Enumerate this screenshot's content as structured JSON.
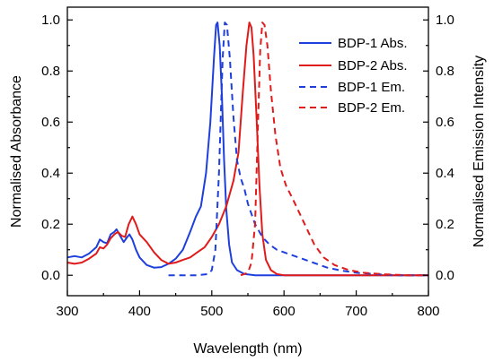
{
  "chart_data": {
    "type": "line",
    "title": "",
    "xlabel": "Wavelength (nm)",
    "ylabel_left": "Normalised Absorbance",
    "ylabel_right": "Normalised Emission Intensity",
    "xlim": [
      300,
      800
    ],
    "ylim_left": [
      -0.08,
      1.05
    ],
    "ylim_right": [
      -0.08,
      1.05
    ],
    "x_ticks": [
      300,
      400,
      500,
      600,
      700,
      800
    ],
    "y_ticks": [
      0.0,
      0.2,
      0.4,
      0.6,
      0.8,
      1.0
    ],
    "x_tick_labels": [
      "300",
      "400",
      "500",
      "600",
      "700",
      "800"
    ],
    "y_tick_labels_left": [
      "0.0",
      "0.2",
      "0.4",
      "0.6",
      "0.8",
      "1.0"
    ],
    "y_tick_labels_right": [
      "0.0",
      "0.2",
      "0.4",
      "0.6",
      "0.8",
      "1.0"
    ],
    "grid": false,
    "legend_position": "top-right",
    "series": [
      {
        "name": "BDP-1 Abs.",
        "color": "#1f3fdd",
        "dash": "solid",
        "axis": "left",
        "points": [
          [
            300,
            0.07
          ],
          [
            310,
            0.075
          ],
          [
            320,
            0.07
          ],
          [
            330,
            0.085
          ],
          [
            340,
            0.11
          ],
          [
            345,
            0.14
          ],
          [
            350,
            0.13
          ],
          [
            355,
            0.125
          ],
          [
            360,
            0.16
          ],
          [
            365,
            0.17
          ],
          [
            368,
            0.18
          ],
          [
            372,
            0.16
          ],
          [
            378,
            0.13
          ],
          [
            383,
            0.15
          ],
          [
            386,
            0.16
          ],
          [
            390,
            0.14
          ],
          [
            395,
            0.1
          ],
          [
            400,
            0.07
          ],
          [
            410,
            0.04
          ],
          [
            420,
            0.03
          ],
          [
            430,
            0.032
          ],
          [
            440,
            0.045
          ],
          [
            450,
            0.065
          ],
          [
            460,
            0.1
          ],
          [
            470,
            0.17
          ],
          [
            478,
            0.23
          ],
          [
            485,
            0.27
          ],
          [
            492,
            0.4
          ],
          [
            498,
            0.6
          ],
          [
            503,
            0.85
          ],
          [
            506,
            0.98
          ],
          [
            508,
            0.99
          ],
          [
            511,
            0.9
          ],
          [
            514,
            0.7
          ],
          [
            517,
            0.45
          ],
          [
            520,
            0.26
          ],
          [
            524,
            0.12
          ],
          [
            528,
            0.05
          ],
          [
            535,
            0.02
          ],
          [
            545,
            0.005
          ],
          [
            560,
            0.0
          ],
          [
            600,
            0.0
          ],
          [
            700,
            0.0
          ],
          [
            800,
            0.0
          ]
        ]
      },
      {
        "name": "BDP-2 Abs.",
        "color": "#e01b1b",
        "dash": "solid",
        "axis": "left",
        "points": [
          [
            300,
            0.05
          ],
          [
            310,
            0.045
          ],
          [
            320,
            0.05
          ],
          [
            330,
            0.065
          ],
          [
            340,
            0.085
          ],
          [
            345,
            0.11
          ],
          [
            350,
            0.105
          ],
          [
            355,
            0.12
          ],
          [
            360,
            0.145
          ],
          [
            365,
            0.16
          ],
          [
            370,
            0.17
          ],
          [
            375,
            0.155
          ],
          [
            380,
            0.15
          ],
          [
            385,
            0.2
          ],
          [
            390,
            0.23
          ],
          [
            395,
            0.2
          ],
          [
            400,
            0.16
          ],
          [
            410,
            0.13
          ],
          [
            420,
            0.09
          ],
          [
            430,
            0.06
          ],
          [
            440,
            0.045
          ],
          [
            450,
            0.05
          ],
          [
            460,
            0.06
          ],
          [
            470,
            0.07
          ],
          [
            480,
            0.09
          ],
          [
            490,
            0.11
          ],
          [
            500,
            0.15
          ],
          [
            510,
            0.2
          ],
          [
            520,
            0.27
          ],
          [
            530,
            0.37
          ],
          [
            537,
            0.48
          ],
          [
            543,
            0.72
          ],
          [
            548,
            0.9
          ],
          [
            552,
            0.99
          ],
          [
            555,
            0.97
          ],
          [
            558,
            0.86
          ],
          [
            562,
            0.62
          ],
          [
            566,
            0.35
          ],
          [
            570,
            0.16
          ],
          [
            575,
            0.06
          ],
          [
            582,
            0.02
          ],
          [
            590,
            0.005
          ],
          [
            600,
            0.0
          ],
          [
            700,
            0.0
          ],
          [
            800,
            0.0
          ]
        ]
      },
      {
        "name": "BDP-1 Em.",
        "color": "#1f3fdd",
        "dash": "dashed",
        "axis": "right",
        "points": [
          [
            440,
            0.0
          ],
          [
            480,
            0.0
          ],
          [
            495,
            0.005
          ],
          [
            500,
            0.02
          ],
          [
            505,
            0.1
          ],
          [
            510,
            0.4
          ],
          [
            515,
            0.85
          ],
          [
            518,
            0.99
          ],
          [
            521,
            0.98
          ],
          [
            525,
            0.85
          ],
          [
            530,
            0.62
          ],
          [
            535,
            0.45
          ],
          [
            540,
            0.38
          ],
          [
            545,
            0.34
          ],
          [
            550,
            0.28
          ],
          [
            560,
            0.2
          ],
          [
            570,
            0.15
          ],
          [
            580,
            0.12
          ],
          [
            590,
            0.1
          ],
          [
            600,
            0.09
          ],
          [
            620,
            0.07
          ],
          [
            640,
            0.05
          ],
          [
            660,
            0.03
          ],
          [
            680,
            0.018
          ],
          [
            700,
            0.01
          ],
          [
            730,
            0.004
          ],
          [
            760,
            0.0
          ],
          [
            800,
            0.0
          ]
        ]
      },
      {
        "name": "BDP-2 Em.",
        "color": "#e01b1b",
        "dash": "dashed",
        "axis": "right",
        "points": [
          [
            540,
            0.0
          ],
          [
            550,
            0.01
          ],
          [
            555,
            0.05
          ],
          [
            560,
            0.2
          ],
          [
            564,
            0.6
          ],
          [
            567,
            0.88
          ],
          [
            570,
            0.99
          ],
          [
            573,
            0.98
          ],
          [
            577,
            0.9
          ],
          [
            582,
            0.72
          ],
          [
            588,
            0.55
          ],
          [
            595,
            0.42
          ],
          [
            603,
            0.35
          ],
          [
            612,
            0.3
          ],
          [
            622,
            0.24
          ],
          [
            632,
            0.18
          ],
          [
            642,
            0.12
          ],
          [
            655,
            0.07
          ],
          [
            670,
            0.04
          ],
          [
            690,
            0.02
          ],
          [
            710,
            0.01
          ],
          [
            740,
            0.004
          ],
          [
            770,
            0.0
          ],
          [
            800,
            0.0
          ]
        ]
      }
    ]
  }
}
